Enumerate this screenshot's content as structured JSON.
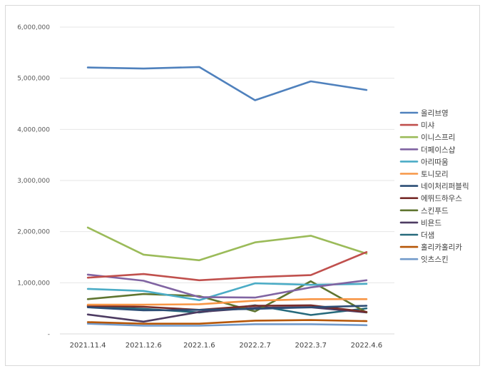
{
  "chart_data": {
    "type": "line",
    "title": "",
    "xlabel": "",
    "ylabel": "",
    "categories": [
      "2021.11.4",
      "2021.12.6",
      "2022.1.6",
      "2022.2.7",
      "2022.3.7",
      "2022.4.6"
    ],
    "ylim": [
      0,
      6000000
    ],
    "yticks": [
      0,
      1000000,
      2000000,
      3000000,
      4000000,
      5000000,
      6000000
    ],
    "ytick_labels": [
      "-",
      "1,000,000",
      "2,000,000",
      "3,000,000",
      "4,000,000",
      "5,000,000",
      "6,000,000"
    ],
    "grid": true,
    "legend_position": "right",
    "series": [
      {
        "name": "올리브영",
        "color": "#4f81bd",
        "values": [
          5210000,
          5190000,
          5220000,
          4570000,
          4940000,
          4770000
        ]
      },
      {
        "name": "미샤",
        "color": "#c0504d",
        "values": [
          1100000,
          1170000,
          1050000,
          1110000,
          1150000,
          1600000
        ]
      },
      {
        "name": "이니스프리",
        "color": "#9bbb59",
        "values": [
          2080000,
          1550000,
          1440000,
          1790000,
          1920000,
          1570000
        ]
      },
      {
        "name": "더페이스샵",
        "color": "#8064a2",
        "values": [
          1160000,
          1040000,
          720000,
          710000,
          910000,
          1050000
        ]
      },
      {
        "name": "아리따움",
        "color": "#4bacc6",
        "values": [
          880000,
          840000,
          660000,
          990000,
          960000,
          980000
        ]
      },
      {
        "name": "토니모리",
        "color": "#f79646",
        "values": [
          570000,
          570000,
          580000,
          650000,
          680000,
          680000
        ]
      },
      {
        "name": "네이처리퍼블릭",
        "color": "#2c4d75",
        "values": [
          520000,
          460000,
          470000,
          490000,
          520000,
          550000
        ]
      },
      {
        "name": "에뛰드하우스",
        "color": "#772c2a",
        "values": [
          550000,
          530000,
          470000,
          550000,
          560000,
          430000
        ]
      },
      {
        "name": "스킨푸드",
        "color": "#5f7530",
        "values": [
          680000,
          780000,
          740000,
          440000,
          1030000,
          420000
        ]
      },
      {
        "name": "비욘드",
        "color": "#4d3b62",
        "values": [
          380000,
          240000,
          430000,
          510000,
          520000,
          420000
        ]
      },
      {
        "name": "더샘",
        "color": "#276a7c",
        "values": [
          540000,
          490000,
          420000,
          560000,
          370000,
          500000
        ]
      },
      {
        "name": "홀리카홀리카",
        "color": "#b65708",
        "values": [
          230000,
          200000,
          200000,
          260000,
          270000,
          250000
        ]
      },
      {
        "name": "잇츠스킨",
        "color": "#729aca",
        "values": [
          200000,
          160000,
          160000,
          190000,
          190000,
          170000
        ]
      }
    ]
  }
}
